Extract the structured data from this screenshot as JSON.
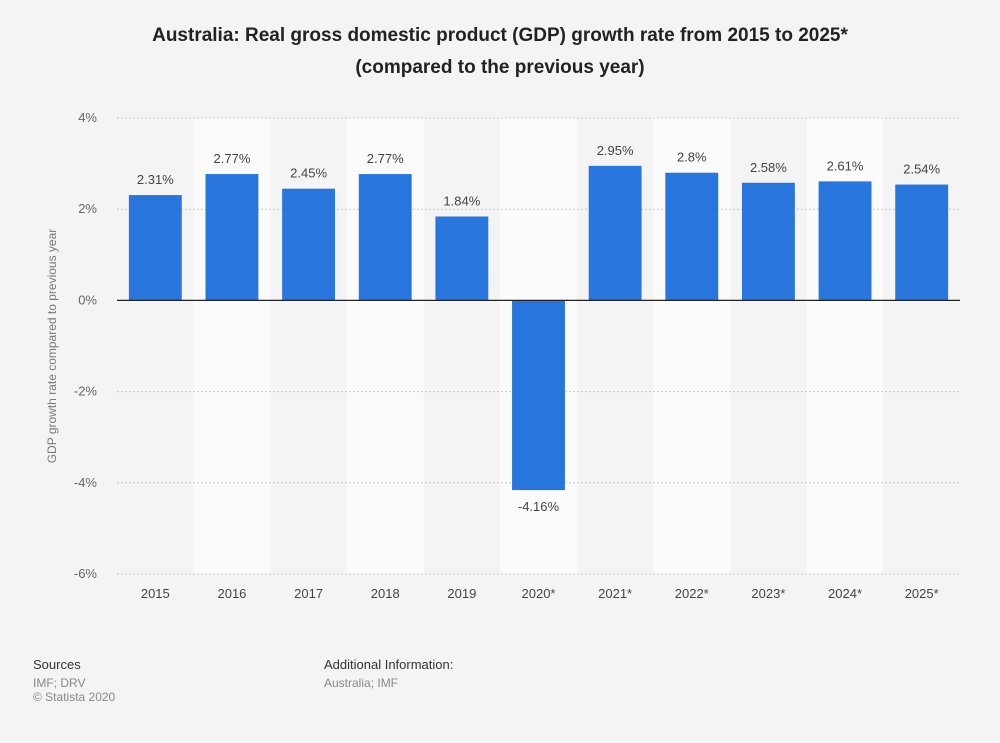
{
  "chart_data": {
    "type": "bar",
    "title": "Australia: Real gross domestic product (GDP) growth rate from 2015 to 2025*",
    "subtitle": "(compared to the previous year)",
    "xlabel": "",
    "ylabel": "GDP growth rate compared to previous year",
    "categories": [
      "2015",
      "2016",
      "2017",
      "2018",
      "2019",
      "2020*",
      "2021*",
      "2022*",
      "2023*",
      "2024*",
      "2025*"
    ],
    "values": [
      2.31,
      2.77,
      2.45,
      2.77,
      1.84,
      -4.16,
      2.95,
      2.8,
      2.58,
      2.61,
      2.54
    ],
    "value_labels": [
      "2.31%",
      "2.77%",
      "2.45%",
      "2.77%",
      "1.84%",
      "-4.16%",
      "2.95%",
      "2.8%",
      "2.58%",
      "2.61%",
      "2.54%"
    ],
    "ylim": [
      -6,
      4
    ],
    "yticks": [
      4,
      2,
      0,
      -2,
      -4,
      -6
    ],
    "ytick_labels": [
      "4%",
      "2%",
      "0%",
      "-2%",
      "-4%",
      "-6%"
    ],
    "grid": true,
    "bar_color": "#2876dd"
  },
  "footer": {
    "sources_heading": "Sources",
    "sources_lines": [
      "IMF; DRV",
      "© Statista 2020"
    ],
    "additional_heading": "Additional Information:",
    "additional_lines": [
      "Australia; IMF"
    ]
  }
}
